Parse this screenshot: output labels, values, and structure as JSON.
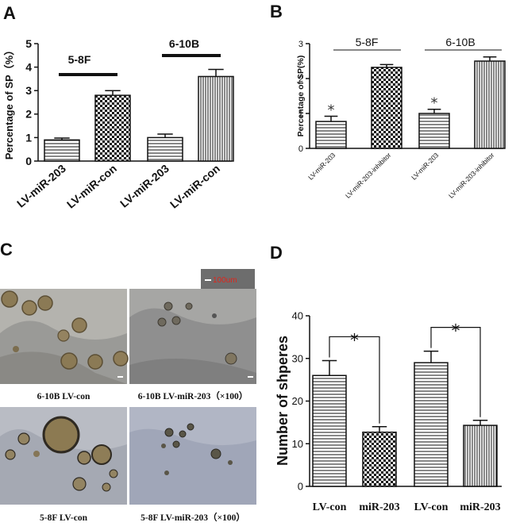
{
  "panels": {
    "A": {
      "letter": "A"
    },
    "B": {
      "letter": "B"
    },
    "C": {
      "letter": "C",
      "scalebar_label": "100um",
      "captions": [
        "6-10B LV-con",
        "6-10B LV-miR-203（×100）",
        "5-8F LV-con",
        "5-8F LV-miR-203（×100）"
      ]
    },
    "D": {
      "letter": "D"
    }
  },
  "colors": {
    "axis": "#111111",
    "bar_fill": "#ffffff",
    "scalebar_bg": "#6d6d6d",
    "scalebar_text": "#e0241b"
  },
  "chart_data": [
    {
      "panel": "A",
      "type": "bar",
      "categories": [
        "LV-miR-203",
        "LV-miR-con",
        "LV-miR-203",
        "LV-miR-con"
      ],
      "values": [
        0.9,
        2.8,
        1.0,
        3.6
      ],
      "errors": [
        0.08,
        0.2,
        0.15,
        0.3
      ],
      "patterns": [
        "hlines",
        "checker",
        "hlines",
        "vlines"
      ],
      "groups": [
        {
          "label": "5-8F",
          "bars": [
            0,
            1
          ]
        },
        {
          "label": "6-10B",
          "bars": [
            2,
            3
          ]
        }
      ],
      "ylabel": "Percentage of SP（%）",
      "ylim": [
        0,
        5
      ],
      "yticks": [
        0,
        1,
        2,
        3,
        4,
        5
      ]
    },
    {
      "panel": "B",
      "type": "bar",
      "categories": [
        "LV-miR-203",
        "LV-miR-203-inhibitor",
        "LV-miR-203",
        "LV-miR-203-inhibitor"
      ],
      "values": [
        0.77,
        2.32,
        1.0,
        2.5
      ],
      "errors": [
        0.15,
        0.08,
        0.12,
        0.12
      ],
      "patterns": [
        "hlines",
        "checker",
        "hlines",
        "vlines"
      ],
      "significance": [
        "*",
        "",
        "*",
        ""
      ],
      "groups": [
        {
          "label": "5-8F",
          "bars": [
            0,
            1
          ]
        },
        {
          "label": "6-10B",
          "bars": [
            2,
            3
          ]
        }
      ],
      "ylabel": "Percentage of SP(%)",
      "ylim": [
        0,
        3
      ],
      "yticks": [
        0,
        1,
        2,
        3
      ]
    },
    {
      "panel": "D",
      "type": "bar",
      "categories": [
        "LV-con",
        "miR-203",
        "LV-con",
        "miR-203"
      ],
      "values": [
        26,
        12.7,
        29,
        14.3
      ],
      "errors": [
        3.5,
        1.3,
        2.7,
        1.2
      ],
      "patterns": [
        "hlines",
        "checker",
        "hlines",
        "vlines"
      ],
      "comparisons": [
        {
          "from": 0,
          "to": 1,
          "label": "*"
        },
        {
          "from": 2,
          "to": 3,
          "label": "*"
        }
      ],
      "ylabel": "Number of shperes",
      "ylim": [
        0,
        40
      ],
      "yticks": [
        0,
        10,
        20,
        30,
        40
      ]
    }
  ]
}
